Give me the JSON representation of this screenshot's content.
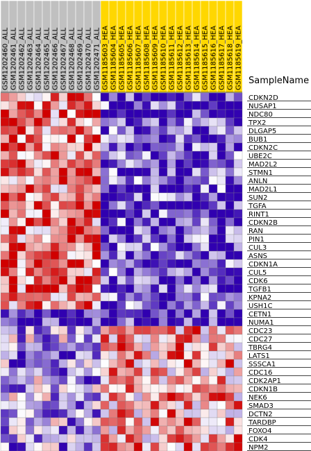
{
  "chart_data": {
    "type": "heatmap",
    "title": "",
    "row_axis_title": "SampleName",
    "groups": [
      {
        "name": "ALL",
        "color": "#c0c0c0",
        "count": 12
      },
      {
        "name": "HEA",
        "color": "#ffd700",
        "count": 17
      }
    ],
    "columns": [
      "GSM1202460_ALL",
      "GSM1202461_ALL",
      "GSM1202462_ALL",
      "GSM1202463_ALL",
      "GSM1202464_ALL",
      "GSM1202465_ALL",
      "GSM1202466_ALL",
      "GSM1202467_ALL",
      "GSM1202468_ALL",
      "GSM1202469_ALL",
      "GSM1202470_ALL",
      "GSM1202471_ALL",
      "GSM1185603_HEA",
      "GSM1185604_HEA",
      "GSM1185605_HEA",
      "GSM1185606_HEA",
      "GSM1185607_HEA",
      "GSM1185608_HEA",
      "GSM1185609_HEA",
      "GSM1185610_HEA",
      "GSM1185611_HEA",
      "GSM1185612_HEA",
      "GSM1185613_HEA",
      "GSM1185614_HEA",
      "GSM1185615_HEA",
      "GSM1185616_HEA",
      "GSM1185617_HEA",
      "GSM1185618_HEA",
      "GSM1185619_HEA"
    ],
    "rows": [
      "CDKN2D",
      "NUSAP1",
      "NDC80",
      "TPX2",
      "DLGAP5",
      "BUB1",
      "CDKN2C",
      "UBE2C",
      "MAD2L2",
      "STMN1",
      "ANLN",
      "MAD2L1",
      "SUN2",
      "TGFA",
      "RINT1",
      "CDKN2B",
      "RAN",
      "PIN1",
      "CUL3",
      "ASNS",
      "CDKN1A",
      "CUL5",
      "CDK6",
      "TGFB1",
      "KPNA2",
      "USH1C",
      "CETN1",
      "NUMA1",
      "CDC23",
      "CDC27",
      "TBRG4",
      "LATS1",
      "SSSCA1",
      "CDC16",
      "CDK2AP1",
      "CDKN1B",
      "NEK6",
      "SMAD3",
      "DCTN2",
      "TARDBP",
      "FOXO4",
      "CDK4",
      "NPM2"
    ],
    "row_groups": [
      {
        "size": 26,
        "left_bias": 0.55,
        "right_bias": -0.7
      },
      {
        "size": 2,
        "left_bias": -0.9,
        "right_bias": -0.9
      },
      {
        "size": 15,
        "left_bias": -0.35,
        "right_bias": 0.35
      }
    ],
    "color_scale": {
      "low": "#3000b0",
      "mid": "#ffffff",
      "high": "#d00000"
    }
  }
}
